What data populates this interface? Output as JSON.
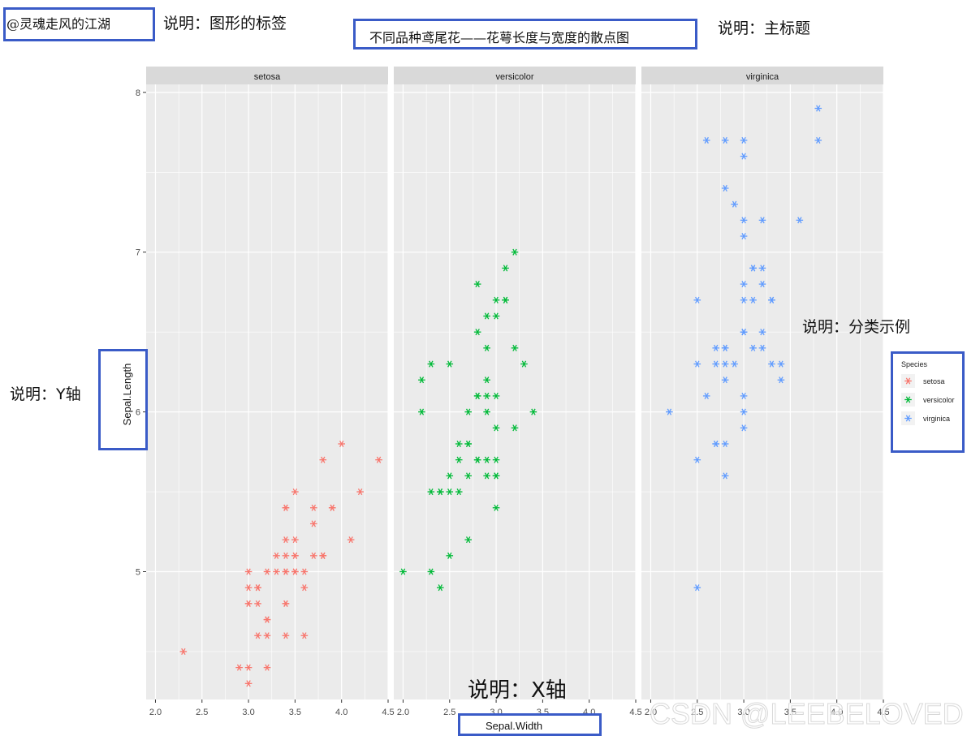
{
  "annotations": {
    "author_label": "@灵魂走风的江湖",
    "note_label": "说明：图形的标签",
    "main_title": "不同品种鸢尾花——花萼长度与宽度的散点图",
    "note_title": "说明：主标题",
    "note_legend": "说明：分类示例",
    "note_y": "说明：Y轴",
    "note_x": "说明：X轴"
  },
  "watermark": "CSDN @LEEBELOVED",
  "colors": {
    "setosa": "#F8766D",
    "versicolor": "#00BA38",
    "virginica": "#619CFF",
    "panel_bg": "#EBEBEB",
    "strip_bg": "#D9D9D9",
    "grid": "#FFFFFF",
    "box_border": "#3A5BC7"
  },
  "chart_data": {
    "type": "scatter",
    "facet_by": "Species",
    "facets": [
      "setosa",
      "versicolor",
      "virginica"
    ],
    "xlabel": "Sepal.Width",
    "ylabel": "Sepal.Length",
    "xlim": [
      1.9,
      4.5
    ],
    "ylim": [
      4.2,
      8.05
    ],
    "xticks": [
      "2.0",
      "2.5",
      "3.0",
      "3.5",
      "4.0",
      "4.5"
    ],
    "yticks": [
      "5",
      "6",
      "7",
      "8"
    ],
    "marker": "asterisk",
    "legend": {
      "title": "Species",
      "position": "right",
      "entries": [
        "setosa",
        "versicolor",
        "virginica"
      ]
    },
    "series": [
      {
        "name": "setosa",
        "points": [
          [
            3.5,
            5.1
          ],
          [
            3.0,
            4.9
          ],
          [
            3.2,
            4.7
          ],
          [
            3.1,
            4.6
          ],
          [
            3.6,
            5.0
          ],
          [
            3.9,
            5.4
          ],
          [
            3.4,
            4.6
          ],
          [
            3.4,
            5.0
          ],
          [
            2.9,
            4.4
          ],
          [
            3.1,
            4.9
          ],
          [
            3.7,
            5.4
          ],
          [
            3.4,
            4.8
          ],
          [
            3.0,
            4.8
          ],
          [
            3.0,
            4.3
          ],
          [
            4.0,
            5.8
          ],
          [
            4.4,
            5.7
          ],
          [
            3.9,
            5.4
          ],
          [
            3.5,
            5.1
          ],
          [
            3.8,
            5.7
          ],
          [
            3.8,
            5.1
          ],
          [
            3.4,
            5.4
          ],
          [
            3.7,
            5.1
          ],
          [
            3.6,
            4.6
          ],
          [
            3.3,
            5.1
          ],
          [
            3.4,
            4.8
          ],
          [
            3.0,
            5.0
          ],
          [
            3.4,
            5.0
          ],
          [
            3.5,
            5.2
          ],
          [
            3.4,
            5.2
          ],
          [
            3.2,
            4.7
          ],
          [
            3.1,
            4.8
          ],
          [
            3.4,
            5.4
          ],
          [
            4.1,
            5.2
          ],
          [
            4.2,
            5.5
          ],
          [
            3.1,
            4.9
          ],
          [
            3.2,
            5.0
          ],
          [
            3.5,
            5.5
          ],
          [
            3.6,
            4.9
          ],
          [
            3.0,
            4.4
          ],
          [
            3.4,
            5.1
          ],
          [
            3.5,
            5.0
          ],
          [
            2.3,
            4.5
          ],
          [
            3.2,
            4.4
          ],
          [
            3.5,
            5.0
          ],
          [
            3.8,
            5.1
          ],
          [
            3.0,
            4.8
          ],
          [
            3.8,
            5.1
          ],
          [
            3.2,
            4.6
          ],
          [
            3.7,
            5.3
          ],
          [
            3.3,
            5.0
          ]
        ]
      },
      {
        "name": "versicolor",
        "points": [
          [
            3.2,
            7.0
          ],
          [
            3.2,
            6.4
          ],
          [
            3.1,
            6.9
          ],
          [
            2.3,
            5.5
          ],
          [
            2.8,
            6.5
          ],
          [
            2.8,
            5.7
          ],
          [
            3.3,
            6.3
          ],
          [
            2.4,
            4.9
          ],
          [
            2.9,
            6.6
          ],
          [
            2.7,
            5.2
          ],
          [
            2.0,
            5.0
          ],
          [
            3.0,
            5.9
          ],
          [
            2.2,
            6.0
          ],
          [
            2.9,
            6.1
          ],
          [
            2.9,
            5.6
          ],
          [
            3.1,
            6.7
          ],
          [
            3.0,
            5.6
          ],
          [
            2.7,
            5.8
          ],
          [
            2.2,
            6.2
          ],
          [
            2.5,
            5.6
          ],
          [
            3.2,
            5.9
          ],
          [
            2.8,
            6.1
          ],
          [
            2.5,
            6.3
          ],
          [
            2.8,
            6.1
          ],
          [
            2.9,
            6.4
          ],
          [
            3.0,
            6.6
          ],
          [
            2.8,
            6.8
          ],
          [
            3.0,
            6.7
          ],
          [
            2.9,
            6.0
          ],
          [
            2.6,
            5.7
          ],
          [
            2.4,
            5.5
          ],
          [
            2.4,
            5.5
          ],
          [
            2.7,
            5.8
          ],
          [
            2.7,
            6.0
          ],
          [
            3.0,
            5.4
          ],
          [
            3.4,
            6.0
          ],
          [
            3.1,
            6.7
          ],
          [
            2.3,
            6.3
          ],
          [
            3.0,
            5.6
          ],
          [
            2.5,
            5.5
          ],
          [
            2.6,
            5.5
          ],
          [
            3.0,
            6.1
          ],
          [
            2.6,
            5.8
          ],
          [
            2.3,
            5.0
          ],
          [
            2.7,
            5.6
          ],
          [
            3.0,
            5.7
          ],
          [
            2.9,
            5.7
          ],
          [
            2.9,
            6.2
          ],
          [
            2.5,
            5.1
          ],
          [
            2.8,
            5.7
          ]
        ]
      },
      {
        "name": "virginica",
        "points": [
          [
            3.3,
            6.3
          ],
          [
            2.7,
            5.8
          ],
          [
            3.0,
            7.1
          ],
          [
            2.9,
            6.3
          ],
          [
            3.0,
            6.5
          ],
          [
            3.0,
            7.6
          ],
          [
            2.5,
            4.9
          ],
          [
            2.9,
            7.3
          ],
          [
            2.5,
            6.7
          ],
          [
            3.6,
            7.2
          ],
          [
            3.2,
            6.5
          ],
          [
            2.7,
            6.4
          ],
          [
            3.0,
            6.8
          ],
          [
            2.5,
            5.7
          ],
          [
            2.8,
            5.8
          ],
          [
            3.2,
            6.4
          ],
          [
            3.0,
            6.5
          ],
          [
            3.8,
            7.7
          ],
          [
            2.6,
            7.7
          ],
          [
            2.2,
            6.0
          ],
          [
            3.2,
            6.9
          ],
          [
            2.8,
            5.6
          ],
          [
            2.8,
            7.7
          ],
          [
            2.7,
            6.3
          ],
          [
            3.3,
            6.7
          ],
          [
            3.2,
            7.2
          ],
          [
            2.8,
            6.2
          ],
          [
            3.0,
            6.1
          ],
          [
            2.8,
            6.4
          ],
          [
            3.0,
            7.2
          ],
          [
            2.8,
            7.4
          ],
          [
            3.8,
            7.9
          ],
          [
            2.8,
            6.4
          ],
          [
            2.8,
            6.3
          ],
          [
            2.6,
            6.1
          ],
          [
            3.0,
            7.7
          ],
          [
            3.4,
            6.3
          ],
          [
            3.1,
            6.4
          ],
          [
            3.0,
            6.0
          ],
          [
            3.1,
            6.9
          ],
          [
            3.1,
            6.7
          ],
          [
            3.1,
            6.9
          ],
          [
            2.7,
            5.8
          ],
          [
            3.2,
            6.8
          ],
          [
            3.3,
            6.7
          ],
          [
            3.0,
            6.7
          ],
          [
            2.5,
            6.3
          ],
          [
            3.0,
            6.5
          ],
          [
            3.4,
            6.2
          ],
          [
            3.0,
            5.9
          ]
        ]
      }
    ]
  }
}
